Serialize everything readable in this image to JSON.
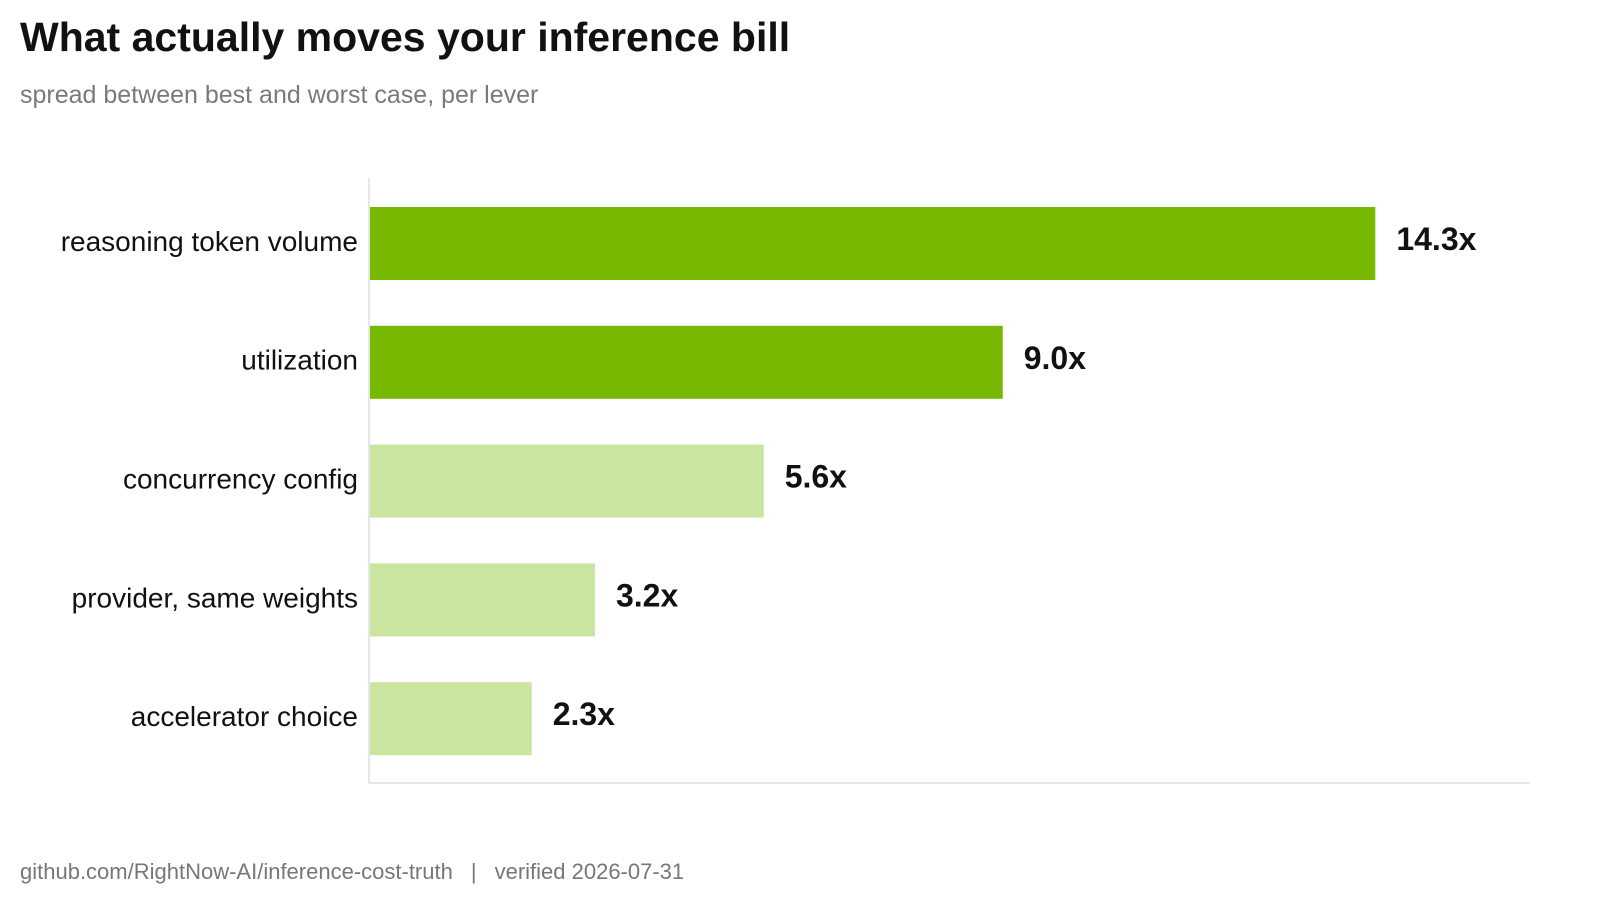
{
  "chart_data": {
    "type": "bar",
    "orientation": "horizontal",
    "title": "What actually moves your inference bill",
    "subtitle": "spread between best and worst case, per lever",
    "categories": [
      "reasoning token volume",
      "utilization",
      "concurrency config",
      "provider, same weights",
      "accelerator choice"
    ],
    "values": [
      14.3,
      9.0,
      5.6,
      3.2,
      2.3
    ],
    "value_labels": [
      "14.3x",
      "9.0x",
      "5.6x",
      "3.2x",
      "2.3x"
    ],
    "xlim": [
      0,
      16.5
    ],
    "grid": false,
    "colors": {
      "highlight": "#76b900",
      "muted": "#c9e59f",
      "axis": "#e6e6e6"
    },
    "bar_colors": [
      "highlight",
      "highlight",
      "muted",
      "muted",
      "muted"
    ]
  },
  "footer": {
    "source": "github.com/RightNow-AI/inference-cost-truth",
    "separator": "|",
    "verified": "verified 2026-07-31"
  }
}
